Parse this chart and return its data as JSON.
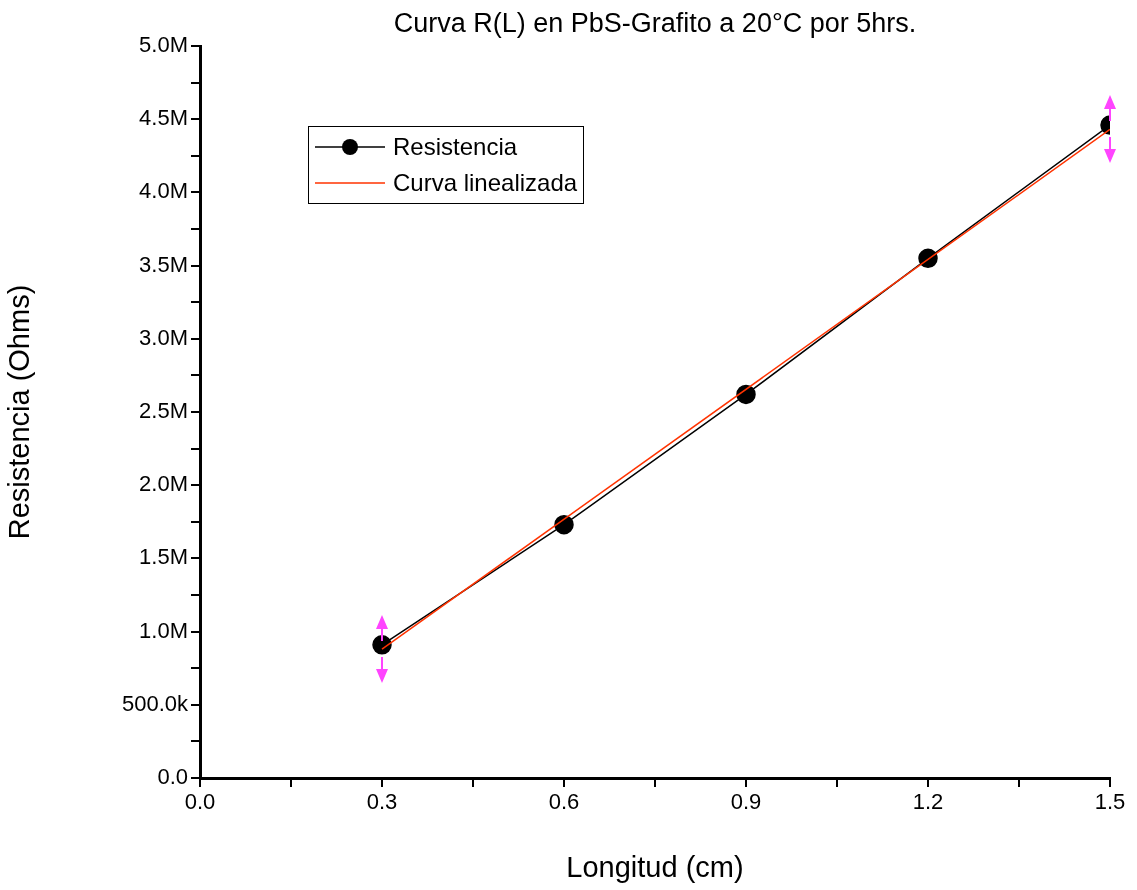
{
  "chart_data": {
    "type": "line",
    "title": "Curva R(L) en PbS-Grafito a 20°C por 5hrs.",
    "xlabel": "Longitud (cm)",
    "ylabel": "Resistencia (Ohms)",
    "x": [
      0.3,
      0.6,
      0.9,
      1.2,
      1.5
    ],
    "series": [
      {
        "name": "Resistencia",
        "color": "#000000",
        "marker": "circle",
        "values": [
          910000,
          1730000,
          2620000,
          3550000,
          4460000
        ]
      },
      {
        "name": "Curva linealizada",
        "color": "#ff3300",
        "marker": "none",
        "x": [
          0.3,
          1.5
        ],
        "values": [
          880000,
          4430000
        ]
      }
    ],
    "xlim": [
      0,
      1.5
    ],
    "ylim": [
      0,
      5000000
    ],
    "xticks": [
      {
        "value": 0,
        "label": "0.0"
      },
      {
        "value": 0.15,
        "label": null
      },
      0.3,
      {
        "value": 0.45,
        "label": null
      },
      0.6,
      {
        "value": 0.75,
        "label": null
      },
      0.9,
      {
        "value": 1.05,
        "label": null
      },
      1.2,
      {
        "value": 1.35,
        "label": null
      },
      1.5
    ],
    "yticks": [
      {
        "value": 0,
        "label": "0.0"
      },
      {
        "value": 250000,
        "label": null
      },
      {
        "value": 500000,
        "label": "500.0k"
      },
      {
        "value": 750000,
        "label": null
      },
      {
        "value": 1000000,
        "label": "1.0M"
      },
      {
        "value": 1250000,
        "label": null
      },
      {
        "value": 1500000,
        "label": "1.5M"
      },
      {
        "value": 1750000,
        "label": null
      },
      {
        "value": 2000000,
        "label": "2.0M"
      },
      {
        "value": 2250000,
        "label": null
      },
      {
        "value": 2500000,
        "label": "2.5M"
      },
      {
        "value": 2750000,
        "label": null
      },
      {
        "value": 3000000,
        "label": "3.0M"
      },
      {
        "value": 3250000,
        "label": null
      },
      {
        "value": 3500000,
        "label": "3.5M"
      },
      {
        "value": 3750000,
        "label": null
      },
      {
        "value": 4000000,
        "label": "4.0M"
      },
      {
        "value": 4250000,
        "label": null
      },
      {
        "value": 4500000,
        "label": "4.5M"
      },
      {
        "value": 4750000,
        "label": null
      },
      {
        "value": 5000000,
        "label": "5.0M"
      }
    ],
    "grid": false,
    "legend": "top left"
  }
}
